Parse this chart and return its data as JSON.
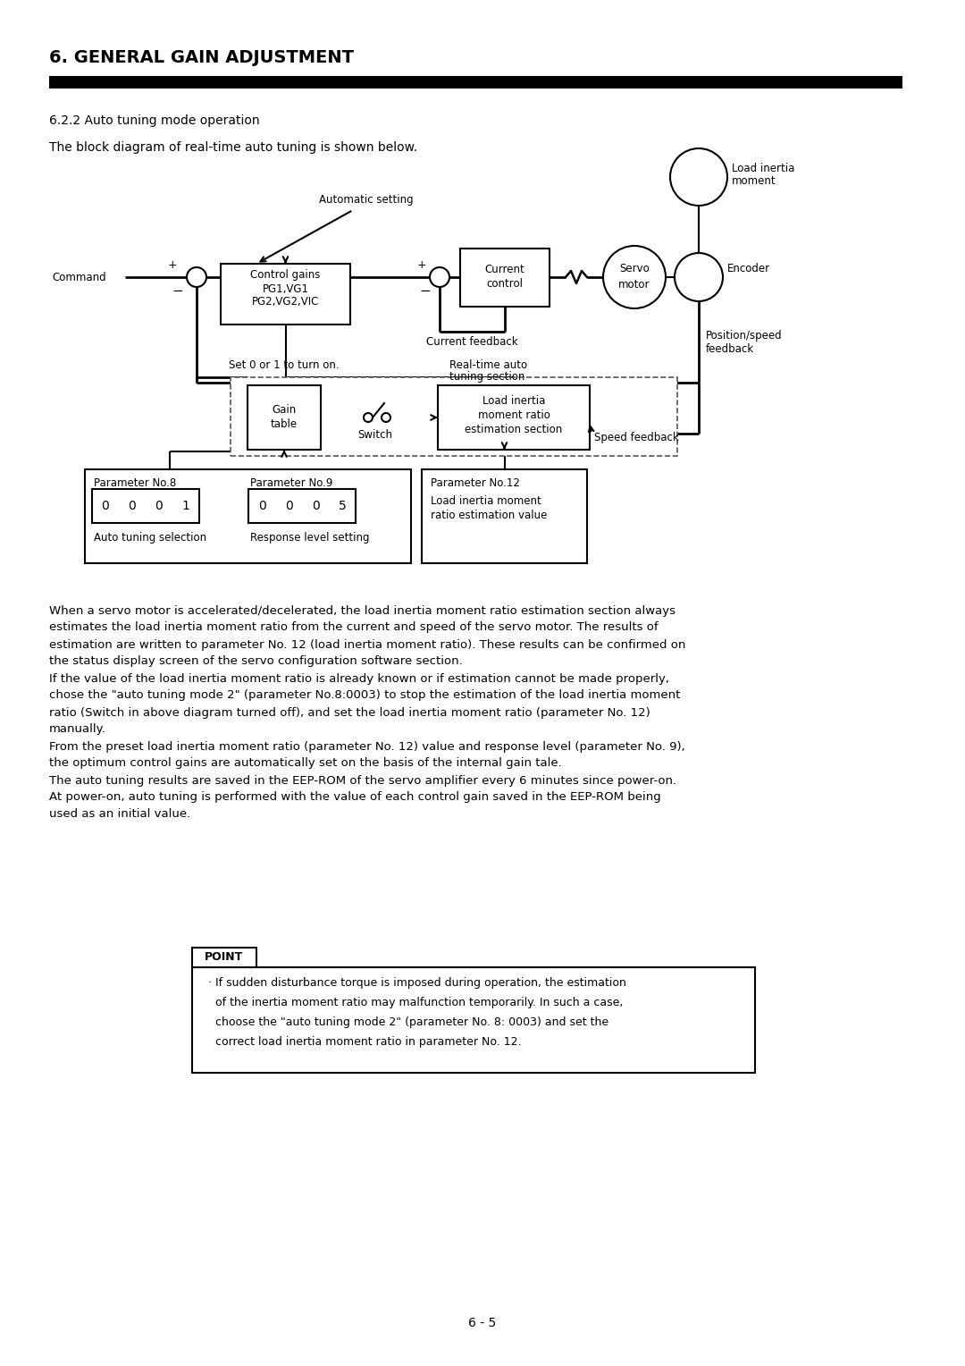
{
  "title": "6. GENERAL GAIN ADJUSTMENT",
  "subtitle": "6.2.2 Auto tuning mode operation",
  "description": "The block diagram of real-time auto tuning is shown below.",
  "bg_color": "#ffffff",
  "text_color": "#000000",
  "body_text": [
    "When a servo motor is accelerated/decelerated, the load inertia moment ratio estimation section always",
    "estimates the load inertia moment ratio from the current and speed of the servo motor. The results of",
    "estimation are written to parameter No. 12 (load inertia moment ratio). These results can be confirmed on",
    "the status display screen of the servo configuration software section.",
    "If the value of the load inertia moment ratio is already known or if estimation cannot be made properly,",
    "chose the \"auto tuning mode 2\" (parameter No.8:0003) to stop the estimation of the load inertia moment",
    "ratio (Switch in above diagram turned off), and set the load inertia moment ratio (parameter No. 12)",
    "manually.",
    "From the preset load inertia moment ratio (parameter No. 12) value and response level (parameter No. 9),",
    "the optimum control gains are automatically set on the basis of the internal gain tale.",
    "The auto tuning results are saved in the EEP-ROM of the servo amplifier every 6 minutes since power-on.",
    "At power-on, auto tuning is performed with the value of each control gain saved in the EEP-ROM being",
    "used as an initial value."
  ],
  "point_text_line1": "· If sudden disturbance torque is imposed during operation, the estimation",
  "point_text_line2": "  of the inertia moment ratio may malfunction temporarily. In such a case,",
  "point_text_line3": "  choose the \"auto tuning mode 2\" (parameter No. 8: 0003) and set the",
  "point_text_line4": "  correct load inertia moment ratio in parameter No. 12.",
  "page_number": "6 - 5"
}
